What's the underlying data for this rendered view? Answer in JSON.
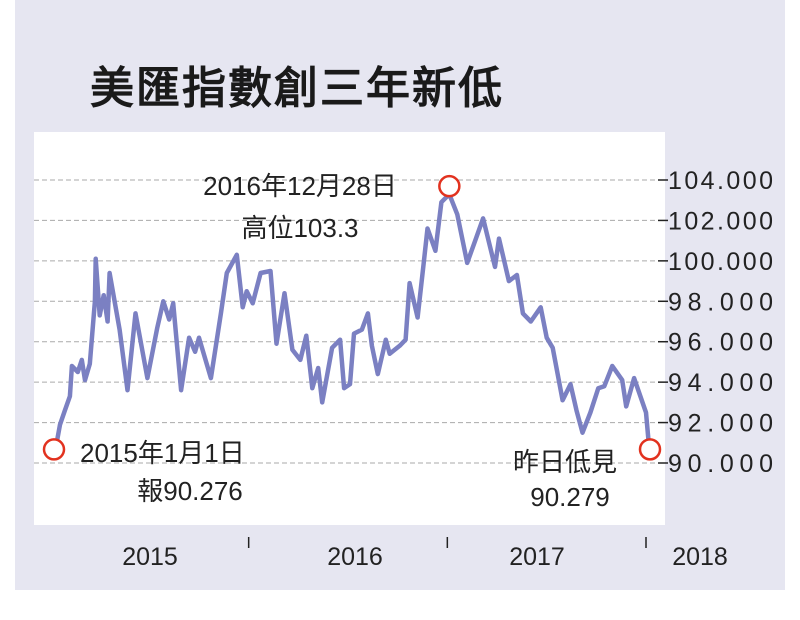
{
  "chart_data": {
    "type": "line",
    "title": "美匯指數創三年新低",
    "xlabel": "",
    "ylabel": "",
    "ylim": [
      90,
      104
    ],
    "xlim": [
      2015.0,
      2018.0
    ],
    "y_ticks": [
      "104.000",
      "102.000",
      "100.000",
      "98.000",
      "96.000",
      "94.000",
      "92.000",
      "90.000"
    ],
    "y_tick_values": [
      104,
      102,
      100,
      98,
      96,
      94,
      92,
      90
    ],
    "x_tick_labels": [
      "2015",
      "2016",
      "2017",
      "2018"
    ],
    "grid": "horizontal dashed",
    "line_color": "#7b80c2",
    "marker_color": "#e2321f",
    "series": [
      {
        "x": [
          2015.0,
          2015.03,
          2015.055,
          2015.08,
          2015.09,
          2015.12,
          2015.14,
          2015.156,
          2015.18,
          2015.206,
          2015.21,
          2015.23,
          2015.25,
          2015.27,
          2015.28,
          2015.33,
          2015.37,
          2015.41,
          2015.47,
          2015.52,
          2015.55,
          2015.58,
          2015.6,
          2015.64,
          2015.68,
          2015.71,
          2015.73,
          2015.79,
          2015.84,
          2015.87,
          2015.92,
          2015.95,
          2015.97,
          2016.0,
          2016.04,
          2016.09,
          2016.12,
          2016.16,
          2016.2,
          2016.24,
          2016.27,
          2016.3,
          2016.33,
          2016.35,
          2016.4,
          2016.44,
          2016.46,
          2016.49,
          2016.51,
          2016.55,
          2016.58,
          2016.6,
          2016.63,
          2016.67,
          2016.69,
          2016.74,
          2016.77,
          2016.79,
          2016.83,
          2016.86,
          2016.88,
          2016.92,
          2016.95,
          2016.99,
          2017.03,
          2017.08,
          2017.12,
          2017.16,
          2017.22,
          2017.24,
          2017.29,
          2017.33,
          2017.36,
          2017.4,
          2017.45,
          2017.48,
          2017.51,
          2017.56,
          2017.6,
          2017.63,
          2017.66,
          2017.7,
          2017.74,
          2017.77,
          2017.81,
          2017.86,
          2017.88,
          2017.92,
          2017.98,
          2018.0
        ],
        "y": [
          90.276,
          91.9,
          92.6,
          93.3,
          94.8,
          94.5,
          95.1,
          94.1,
          94.9,
          98.0,
          100.1,
          97.3,
          98.3,
          97.0,
          99.4,
          96.6,
          93.6,
          97.4,
          94.2,
          96.7,
          98.0,
          97.1,
          97.9,
          93.6,
          96.2,
          95.5,
          96.2,
          94.2,
          97.4,
          99.4,
          100.3,
          97.7,
          98.5,
          97.9,
          99.4,
          99.5,
          95.9,
          98.4,
          95.6,
          95.1,
          96.3,
          93.7,
          94.7,
          93.0,
          95.7,
          96.1,
          93.7,
          93.9,
          96.4,
          96.6,
          97.4,
          95.8,
          94.4,
          96.1,
          95.4,
          95.8,
          96.1,
          98.9,
          97.2,
          99.8,
          101.6,
          100.5,
          102.9,
          103.3,
          102.3,
          99.9,
          101.0,
          102.1,
          99.7,
          101.1,
          99.0,
          99.3,
          97.4,
          97.0,
          97.7,
          96.2,
          95.7,
          93.1,
          93.9,
          92.6,
          91.5,
          92.5,
          93.7,
          93.8,
          94.8,
          94.1,
          92.8,
          94.2,
          92.5,
          90.279
        ]
      }
    ],
    "annotations": [
      {
        "x": 2015.0,
        "y": 90.276,
        "line1": "2015年1月1日",
        "line2": "報90.276"
      },
      {
        "x": 2016.99,
        "y": 103.3,
        "line1": "2016年12月28日",
        "line2": "高位103.3"
      },
      {
        "x": 2018.0,
        "y": 90.279,
        "line1": "昨日低見",
        "line2": "90.279"
      }
    ]
  }
}
